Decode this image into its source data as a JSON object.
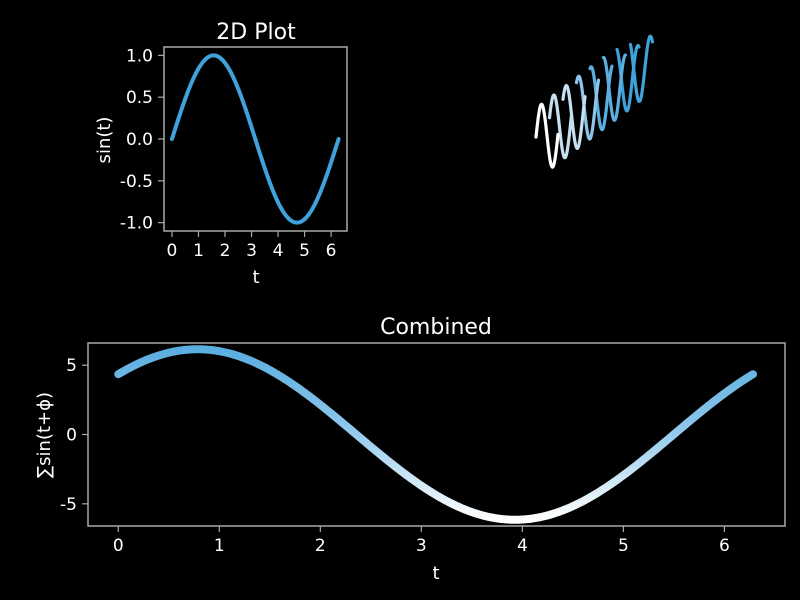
{
  "theme": {
    "background": "#000000",
    "frame_color": "#a9a9a9",
    "text_color": "#ffffff",
    "line_color": "#3fa2db",
    "gradient": [
      "#ffffff",
      "#c6e0f2",
      "#5aaee0",
      "#3fa2db"
    ]
  },
  "chart_data": [
    {
      "id": "plot2d",
      "type": "line",
      "title": "2D Plot",
      "xlabel": "t",
      "ylabel": "sin(t)",
      "xlim": [
        -0.3,
        6.6
      ],
      "ylim": [
        -1.1,
        1.1
      ],
      "xticks": [
        0,
        1,
        2,
        3,
        4,
        5,
        6
      ],
      "xtick_labels": [
        "0",
        "1",
        "2",
        "3",
        "4",
        "5",
        "6"
      ],
      "yticks": [
        1.0,
        0.5,
        0.0,
        -0.5,
        -1.0
      ],
      "ytick_labels": [
        "1.0",
        "0.5",
        "0.0",
        "-0.5",
        "-1.0"
      ],
      "series": [
        {
          "function": "sin(t)",
          "x": [
            0,
            0.5,
            1,
            1.5708,
            2,
            2.5,
            3,
            3.5,
            4,
            4.7124,
            5,
            5.5,
            6,
            6.2832
          ],
          "y": [
            0,
            0.479,
            0.841,
            1.0,
            0.909,
            0.598,
            0.141,
            -0.351,
            -0.757,
            -1.0,
            -0.959,
            -0.706,
            -0.279,
            0
          ],
          "color": "#3fa2db"
        }
      ]
    },
    {
      "id": "plot3d",
      "type": "line",
      "axes_visible": false,
      "series": [
        {
          "phase": 0.0,
          "color": "#ffffff"
        },
        {
          "phase": 0.785,
          "color": "#c6e0f2"
        },
        {
          "phase": 1.571,
          "color": "#c6e0f2"
        },
        {
          "phase": 2.356,
          "color": "#8cc6ea"
        },
        {
          "phase": 3.142,
          "color": "#5aaee0"
        },
        {
          "phase": 3.927,
          "color": "#5aaee0"
        },
        {
          "phase": 4.712,
          "color": "#3fa2db"
        },
        {
          "phase": 5.498,
          "color": "#3fa2db"
        }
      ]
    },
    {
      "id": "combined",
      "type": "line",
      "title": "Combined",
      "xlabel": "t",
      "ylabel": "∑sin(t+ϕ)",
      "xlim": [
        -0.3,
        6.6
      ],
      "ylim": [
        -6.6,
        6.6
      ],
      "xticks": [
        0,
        1,
        2,
        3,
        4,
        5,
        6
      ],
      "xtick_labels": [
        "0",
        "1",
        "2",
        "3",
        "4",
        "5",
        "6"
      ],
      "yticks": [
        5,
        0,
        -5
      ],
      "ytick_labels": [
        "5",
        "0",
        "-5"
      ],
      "series": [
        {
          "function": "sum of sin(t+phi)",
          "x": [
            0,
            0.785,
            1.5,
            2.356,
            3,
            3.927,
            4.5,
            5.498,
            6.283
          ],
          "y": [
            4.35,
            6.15,
            4.4,
            0.0,
            -3.9,
            -6.15,
            -5.1,
            0.0,
            4.35
          ],
          "color_scale": [
            "#ffffff",
            "#5aaee0"
          ]
        }
      ]
    }
  ]
}
